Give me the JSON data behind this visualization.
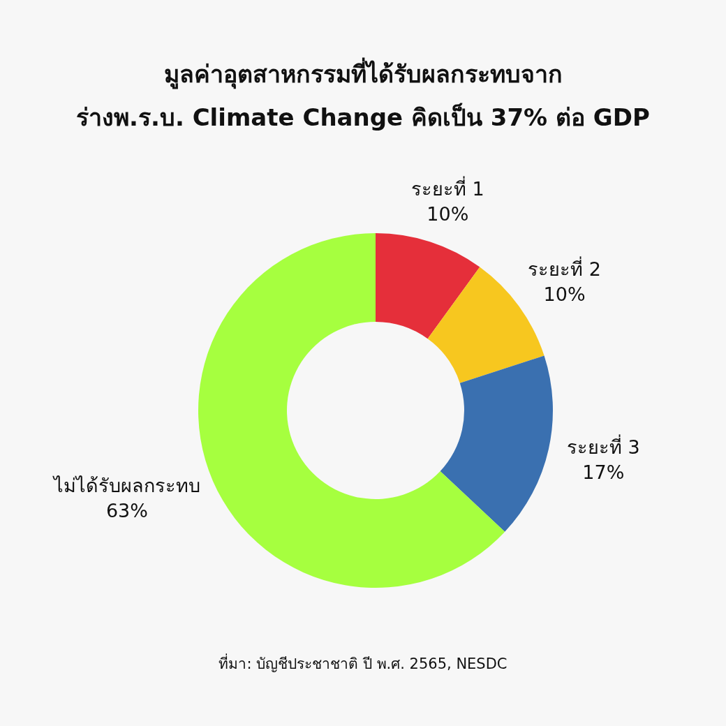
{
  "chart_data": {
    "type": "donut",
    "title": "มูลค่าอุตสาหกรรมที่ได้รับผลกระทบจาก\nร่างพ.ร.บ. Climate Change คิดเป็น 37% ต่อ GDP",
    "categories": [
      "ระยะที่ 1",
      "ระยะที่ 2",
      "ระยะที่ 3",
      "ไม่ได้รับผลกระทบ"
    ],
    "values": [
      10,
      10,
      17,
      63
    ],
    "colors": [
      "#e52f3a",
      "#f7c71f",
      "#3a70b0",
      "#a6ff3f"
    ],
    "value_labels": [
      "10%",
      "10%",
      "17%",
      "63%"
    ],
    "annotations": [
      "ที่มา: บัญชีประชาชาติ ปี พ.ศ. 2565, NESDC"
    ]
  }
}
